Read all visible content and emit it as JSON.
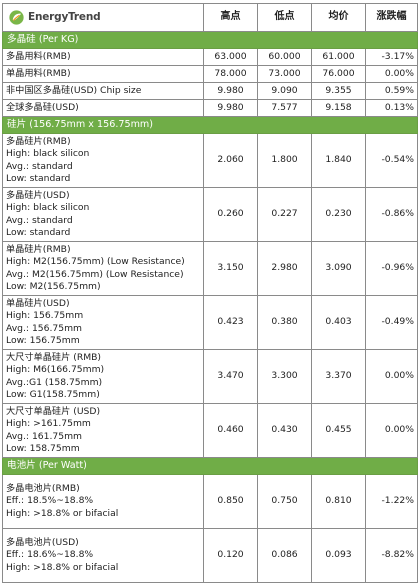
{
  "brand": "EnergyTrend",
  "headers": {
    "high": "高点",
    "low": "低点",
    "avg": "均价",
    "change": "涨跌幅"
  },
  "sections": [
    {
      "title": "多晶硅 (Per KG)",
      "rows": [
        {
          "lines": [
            "多晶用料(RMB)"
          ],
          "high": "63.000",
          "low": "60.000",
          "avg": "61.000",
          "change": "-3.17%"
        },
        {
          "lines": [
            "单晶用料(RMB)"
          ],
          "high": "78.000",
          "low": "73.000",
          "avg": "76.000",
          "change": "0.00%"
        },
        {
          "lines": [
            "非中国区多晶硅(USD) Chip size"
          ],
          "high": "9.980",
          "low": "9.090",
          "avg": "9.355",
          "change": "0.59%"
        },
        {
          "lines": [
            "全球多晶硅(USD)"
          ],
          "high": "9.980",
          "low": "7.577",
          "avg": "9.158",
          "change": "0.13%"
        }
      ]
    },
    {
      "title": "硅片 (156.75mm x 156.75mm)",
      "rows": [
        {
          "lines": [
            "多晶硅片(RMB)",
            "High: black silicon",
            "Avg.: standard",
            "Low: standard"
          ],
          "high": "2.060",
          "low": "1.800",
          "avg": "1.840",
          "change": "-0.54%"
        },
        {
          "lines": [
            "多晶硅片(USD)",
            "High: black silicon",
            "Avg.: standard",
            "Low: standard"
          ],
          "high": "0.260",
          "low": "0.227",
          "avg": "0.230",
          "change": "-0.86%"
        },
        {
          "lines": [
            "单晶硅片(RMB)",
            "High: M2(156.75mm) (Low Resistance)",
            "Avg.: M2(156.75mm) (Low Resistance)",
            "Low: M2(156.75mm)"
          ],
          "high": "3.150",
          "low": "2.980",
          "avg": "3.090",
          "change": "-0.96%"
        },
        {
          "lines": [
            "单晶硅片(USD)",
            "High: 156.75mm",
            "Avg.: 156.75mm",
            "Low: 156.75mm"
          ],
          "high": "0.423",
          "low": "0.380",
          "avg": "0.403",
          "change": "-0.49%"
        },
        {
          "lines": [
            "大尺寸单晶硅片 (RMB)",
            "High: M6(166.75mm)",
            "Avg.:G1 (158.75mm)",
            "Low: G1(158.75mm)"
          ],
          "high": "3.470",
          "low": "3.300",
          "avg": "3.370",
          "change": "0.00%"
        },
        {
          "lines": [
            "大尺寸单晶硅片 (USD)",
            "High: >161.75mm",
            "Avg.: 161.75mm",
            "Low: 158.75mm"
          ],
          "high": "0.460",
          "low": "0.430",
          "avg": "0.455",
          "change": "0.00%"
        }
      ]
    },
    {
      "title": "电池片 (Per Watt)",
      "rows": [
        {
          "lines": [
            "多晶电池片(RMB)",
            "Eff.: 18.5%~18.8%",
            "High: >18.8% or bifacial"
          ],
          "high": "0.850",
          "low": "0.750",
          "avg": "0.810",
          "change": "-1.22%"
        },
        {
          "lines": [
            "多晶电池片(USD)",
            "Eff.: 18.6%~18.8%",
            "High: >18.8% or bifacial"
          ],
          "high": "0.120",
          "low": "0.086",
          "avg": "0.093",
          "change": "-8.82%"
        }
      ]
    }
  ],
  "colors": {
    "section_bg": "#70ad47",
    "logo_green": "#7ab648",
    "logo_orange": "#f39a1f"
  }
}
